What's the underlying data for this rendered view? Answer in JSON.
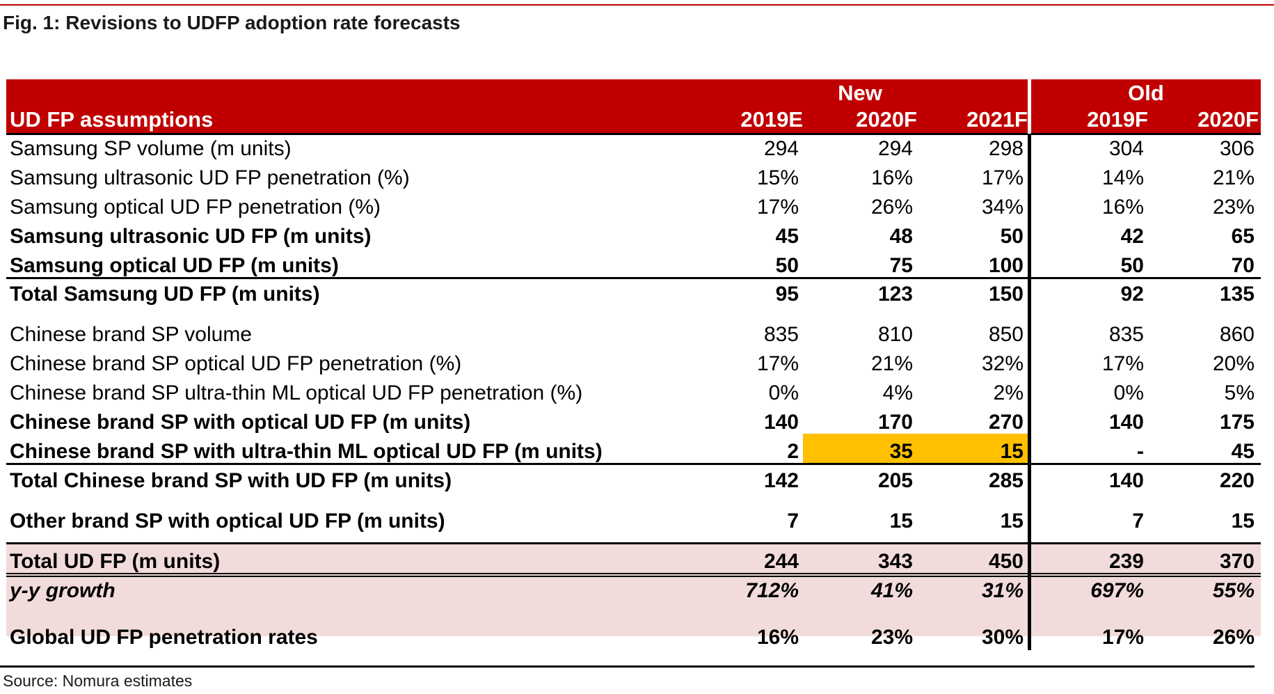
{
  "figure": {
    "title": "Fig. 1: Revisions to UDFP adoption rate forecasts",
    "source": "Source: Nomura estimates"
  },
  "colors": {
    "header_red": "#c00000",
    "highlight_yellow": "#ffc000",
    "summary_pink": "#f2dcdb"
  },
  "chart_data": {
    "type": "table",
    "header": {
      "row_label": "UD FP assumptions",
      "groups": [
        {
          "label": "New",
          "columns": [
            "2019E",
            "2020F",
            "2021F"
          ]
        },
        {
          "label": "Old",
          "columns": [
            "2019F",
            "2020F"
          ]
        }
      ]
    },
    "rows": [
      {
        "label": "Samsung SP volume (m units)",
        "values": [
          "294",
          "294",
          "298",
          "304",
          "306"
        ],
        "style": "normal"
      },
      {
        "label": "Samsung ultrasonic UD FP penetration (%)",
        "values": [
          "15%",
          "16%",
          "17%",
          "14%",
          "21%"
        ],
        "style": "normal"
      },
      {
        "label": "Samsung optical UD FP penetration (%)",
        "values": [
          "17%",
          "26%",
          "34%",
          "16%",
          "23%"
        ],
        "style": "normal"
      },
      {
        "label": "Samsung ultrasonic UD FP (m units)",
        "values": [
          "45",
          "48",
          "50",
          "42",
          "65"
        ],
        "style": "bold"
      },
      {
        "label": "Samsung optical UD FP  (m units)",
        "values": [
          "50",
          "75",
          "100",
          "50",
          "70"
        ],
        "style": "bold"
      },
      {
        "label": "Total Samsung UD FP (m units)",
        "values": [
          "95",
          "123",
          "150",
          "92",
          "135"
        ],
        "style": "bold"
      },
      {
        "label": "Chinese brand SP volume",
        "values": [
          "835",
          "810",
          "850",
          "835",
          "860"
        ],
        "style": "normal"
      },
      {
        "label": "Chinese brand SP optical UD FP penetration (%)",
        "values": [
          "17%",
          "21%",
          "32%",
          "17%",
          "20%"
        ],
        "style": "normal"
      },
      {
        "label": "Chinese brand SP ultra-thin ML optical UD FP penetration (%)",
        "values": [
          "0%",
          "4%",
          "2%",
          "0%",
          "5%"
        ],
        "style": "normal"
      },
      {
        "label": "Chinese brand SP with optical UD FP (m units)",
        "values": [
          "140",
          "170",
          "270",
          "140",
          "175"
        ],
        "style": "bold"
      },
      {
        "label": "Chinese brand SP with ultra-thin ML optical UD FP (m units)",
        "values": [
          "2",
          "35",
          "15",
          "-",
          "45"
        ],
        "style": "bold",
        "highlighted_columns": [
          1,
          2
        ]
      },
      {
        "label": "Total Chinese brand SP with UD FP (m units)",
        "values": [
          "142",
          "205",
          "285",
          "140",
          "220"
        ],
        "style": "bold"
      },
      {
        "label": "Other brand SP with optical UD FP (m units)",
        "values": [
          "7",
          "15",
          "15",
          "7",
          "15"
        ],
        "style": "bold"
      },
      {
        "label": "Total UD FP (m units)",
        "values": [
          "244",
          "343",
          "450",
          "239",
          "370"
        ],
        "style": "bold"
      },
      {
        "label": "y-y growth",
        "values": [
          "712%",
          "41%",
          "31%",
          "697%",
          "55%"
        ],
        "style": "bold-italic"
      },
      {
        "label": "Global UD FP penetration rates",
        "values": [
          "16%",
          "23%",
          "30%",
          "17%",
          "26%"
        ],
        "style": "bold"
      }
    ]
  }
}
